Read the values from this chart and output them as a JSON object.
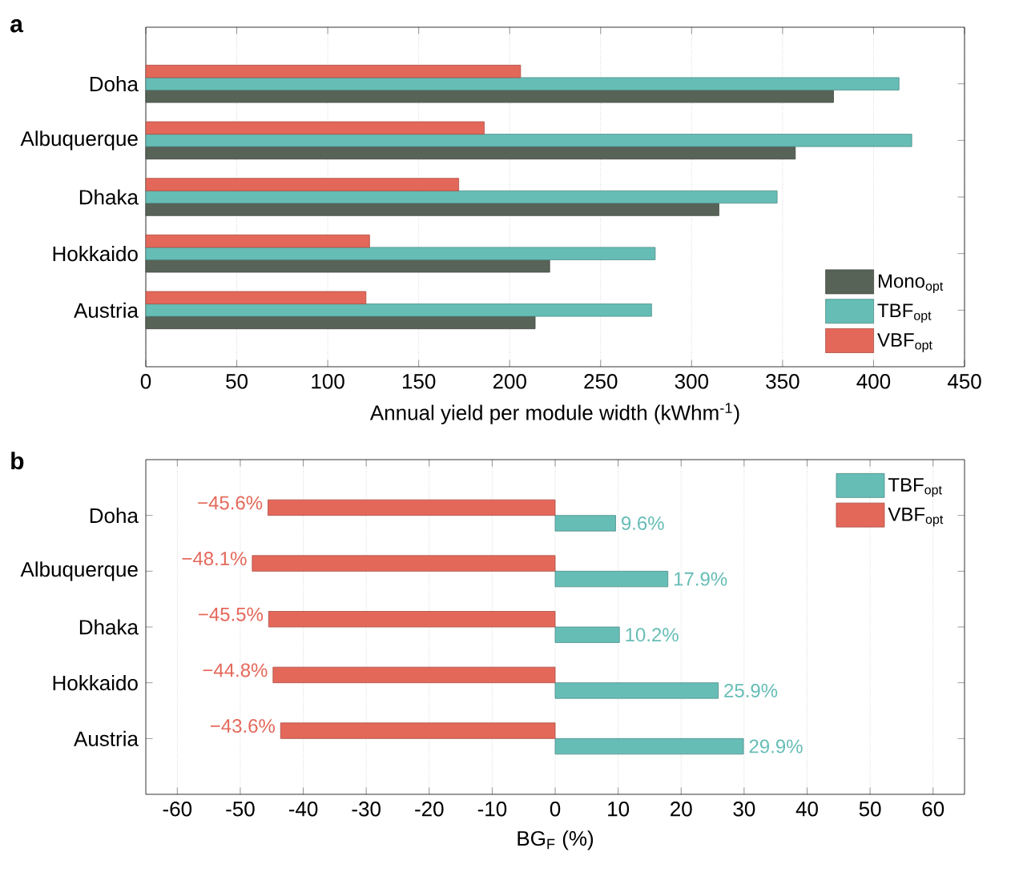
{
  "chart_data": [
    {
      "type": "bar",
      "title": "a",
      "orientation": "horizontal",
      "xlabel": "Annual yield per module width (kWhm$^{-1}$)",
      "categories": [
        "Doha",
        "Albuquerque",
        "Dhaka",
        "Hokkaido",
        "Austria"
      ],
      "series": [
        {
          "name": "Mono$_{opt}$",
          "color": "#586358",
          "values": [
            378,
            357,
            315,
            222,
            214
          ]
        },
        {
          "name": "TBF$_{opt}$",
          "color": "#66bdb6",
          "values": [
            414,
            421,
            347,
            280,
            278
          ]
        },
        {
          "name": "VBF$_{opt}$",
          "color": "#e4685a",
          "values": [
            206,
            186,
            172,
            123,
            121
          ]
        }
      ],
      "xlim": [
        0,
        450
      ],
      "xticks": [
        0,
        50,
        100,
        150,
        200,
        250,
        300,
        350,
        400,
        450
      ],
      "grid": "x",
      "legend": "bottom right"
    },
    {
      "type": "bar",
      "title": "b",
      "orientation": "horizontal",
      "xlabel": "BG$_{F}$ (%)",
      "categories": [
        "Doha",
        "Albuquerque",
        "Dhaka",
        "Hokkaido",
        "Austria"
      ],
      "series": [
        {
          "name": "TBF$_{opt}$",
          "color": "#66bdb6",
          "values": [
            9.6,
            17.9,
            10.2,
            25.9,
            29.9
          ],
          "value_labels": [
            "9.6%",
            "17.9%",
            "10.2%",
            "25.9%",
            "29.9%"
          ]
        },
        {
          "name": "VBF$_{opt}$",
          "color": "#e4685a",
          "values": [
            -45.6,
            -48.1,
            -45.5,
            -44.8,
            -43.6
          ],
          "value_labels": [
            "−45.6%",
            "−48.1%",
            "−45.5%",
            "−44.8%",
            "−43.6%"
          ]
        }
      ],
      "xlim": [
        -65,
        65
      ],
      "xticks": [
        -60,
        -50,
        -40,
        -30,
        -20,
        -10,
        0,
        10,
        20,
        30,
        40,
        50,
        60
      ],
      "grid": "x",
      "legend": "top right"
    }
  ]
}
